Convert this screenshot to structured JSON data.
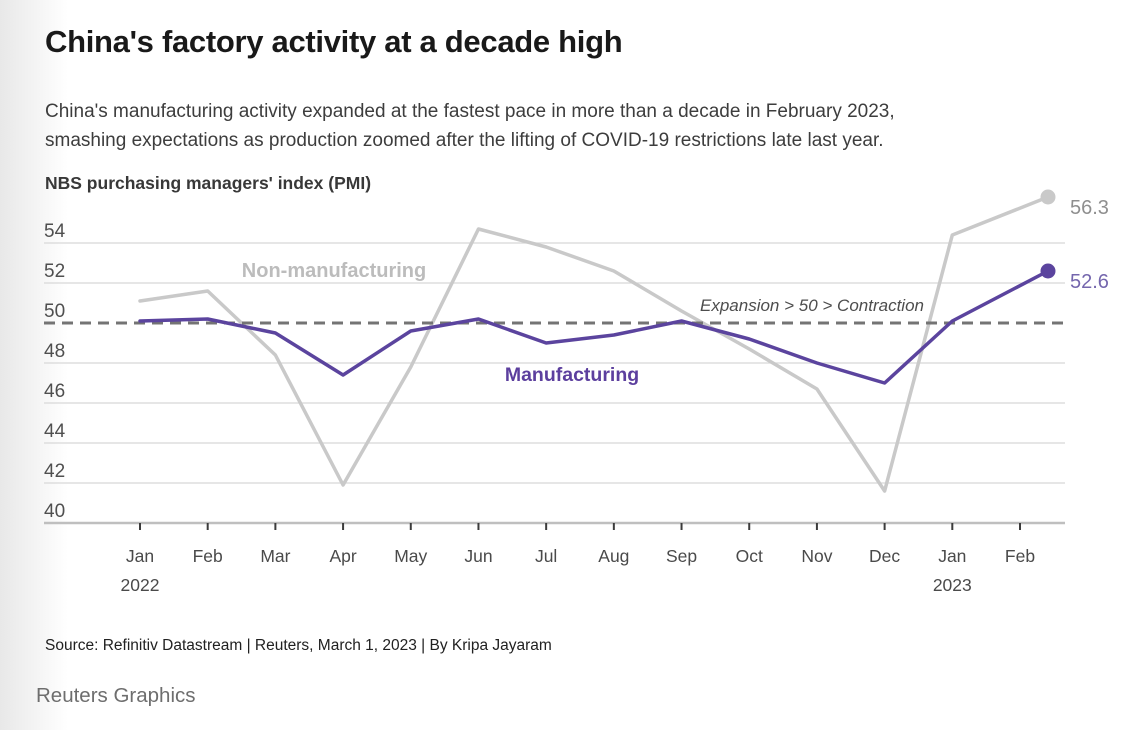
{
  "header": {
    "title": "China's factory activity at a decade high",
    "subtitle_lines": [
      "China's manufacturing activity expanded at the fastest pace in more than a decade in February 2023,",
      "smashing expectations as production zoomed after the lifting of COVID-19 restrictions late last year."
    ]
  },
  "chart_data": {
    "type": "line",
    "title": "NBS purchasing managers' index (PMI)",
    "x": [
      "Jan",
      "Feb",
      "Mar",
      "Apr",
      "May",
      "Jun",
      "Jul",
      "Aug",
      "Sep",
      "Oct",
      "Nov",
      "Dec",
      "Jan",
      "Feb"
    ],
    "x_years": [
      {
        "index": 0,
        "label": "2022"
      },
      {
        "index": 12,
        "label": "2023"
      }
    ],
    "series": [
      {
        "name": "Non-manufacturing",
        "color": "#c9c9c9",
        "label_color": "#bcbcbc",
        "end_label": "56.3",
        "end_label_color": "#8f8f8f",
        "values": [
          51.1,
          51.6,
          48.4,
          41.9,
          47.8,
          54.7,
          53.8,
          52.6,
          50.6,
          48.7,
          46.7,
          41.6,
          54.4,
          56.3
        ]
      },
      {
        "name": "Manufacturing",
        "color": "#5b449e",
        "label_color": "#5c3f9e",
        "end_label": "52.6",
        "end_label_color": "#7466ad",
        "values": [
          50.1,
          50.2,
          49.5,
          47.4,
          49.6,
          50.2,
          49.0,
          49.4,
          50.1,
          49.2,
          48.0,
          47.0,
          50.1,
          52.6
        ]
      }
    ],
    "ylim": [
      40,
      54
    ],
    "yticks": [
      54,
      52,
      50,
      48,
      46,
      44,
      42,
      40
    ],
    "reference_line": {
      "value": 50,
      "label": "Expansion > 50 > Contraction",
      "color": "#747474"
    },
    "grid": true,
    "legend_position": "inline-labels"
  },
  "footer": {
    "source": "Source: Refinitiv Datastream | Reuters, March 1, 2023 | By Kripa Jayaram",
    "brand": "Reuters Graphics"
  }
}
